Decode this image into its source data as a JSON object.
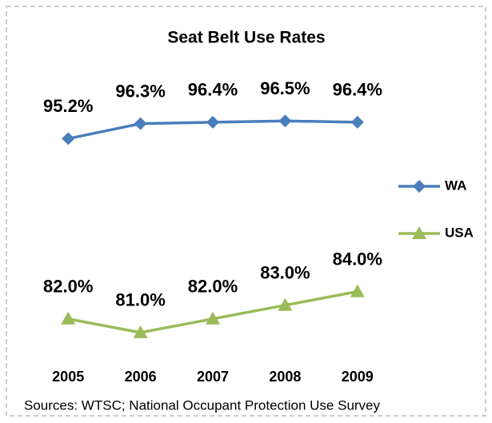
{
  "chart_data": {
    "type": "line",
    "title": "Seat Belt Use Rates",
    "categories": [
      "2005",
      "2006",
      "2007",
      "2008",
      "2009"
    ],
    "series": [
      {
        "name": "WA",
        "color": "#4a7ebb",
        "marker": "diamond",
        "values": [
          95.2,
          96.3,
          96.4,
          96.5,
          96.4
        ],
        "value_labels": [
          "95.2%",
          "96.3%",
          "96.4%",
          "96.5%",
          "96.4%"
        ]
      },
      {
        "name": "USA",
        "color": "#9bbb59",
        "marker": "triangle",
        "values": [
          82.0,
          81.0,
          82.0,
          83.0,
          84.0
        ],
        "value_labels": [
          "82.0%",
          "81.0%",
          "82.0%",
          "83.0%",
          "84.0%"
        ]
      }
    ],
    "ylim": [
      79,
      99.5
    ],
    "legend": "right",
    "source": "Sources: WTSC; National Occupant Protection Use Survey"
  }
}
